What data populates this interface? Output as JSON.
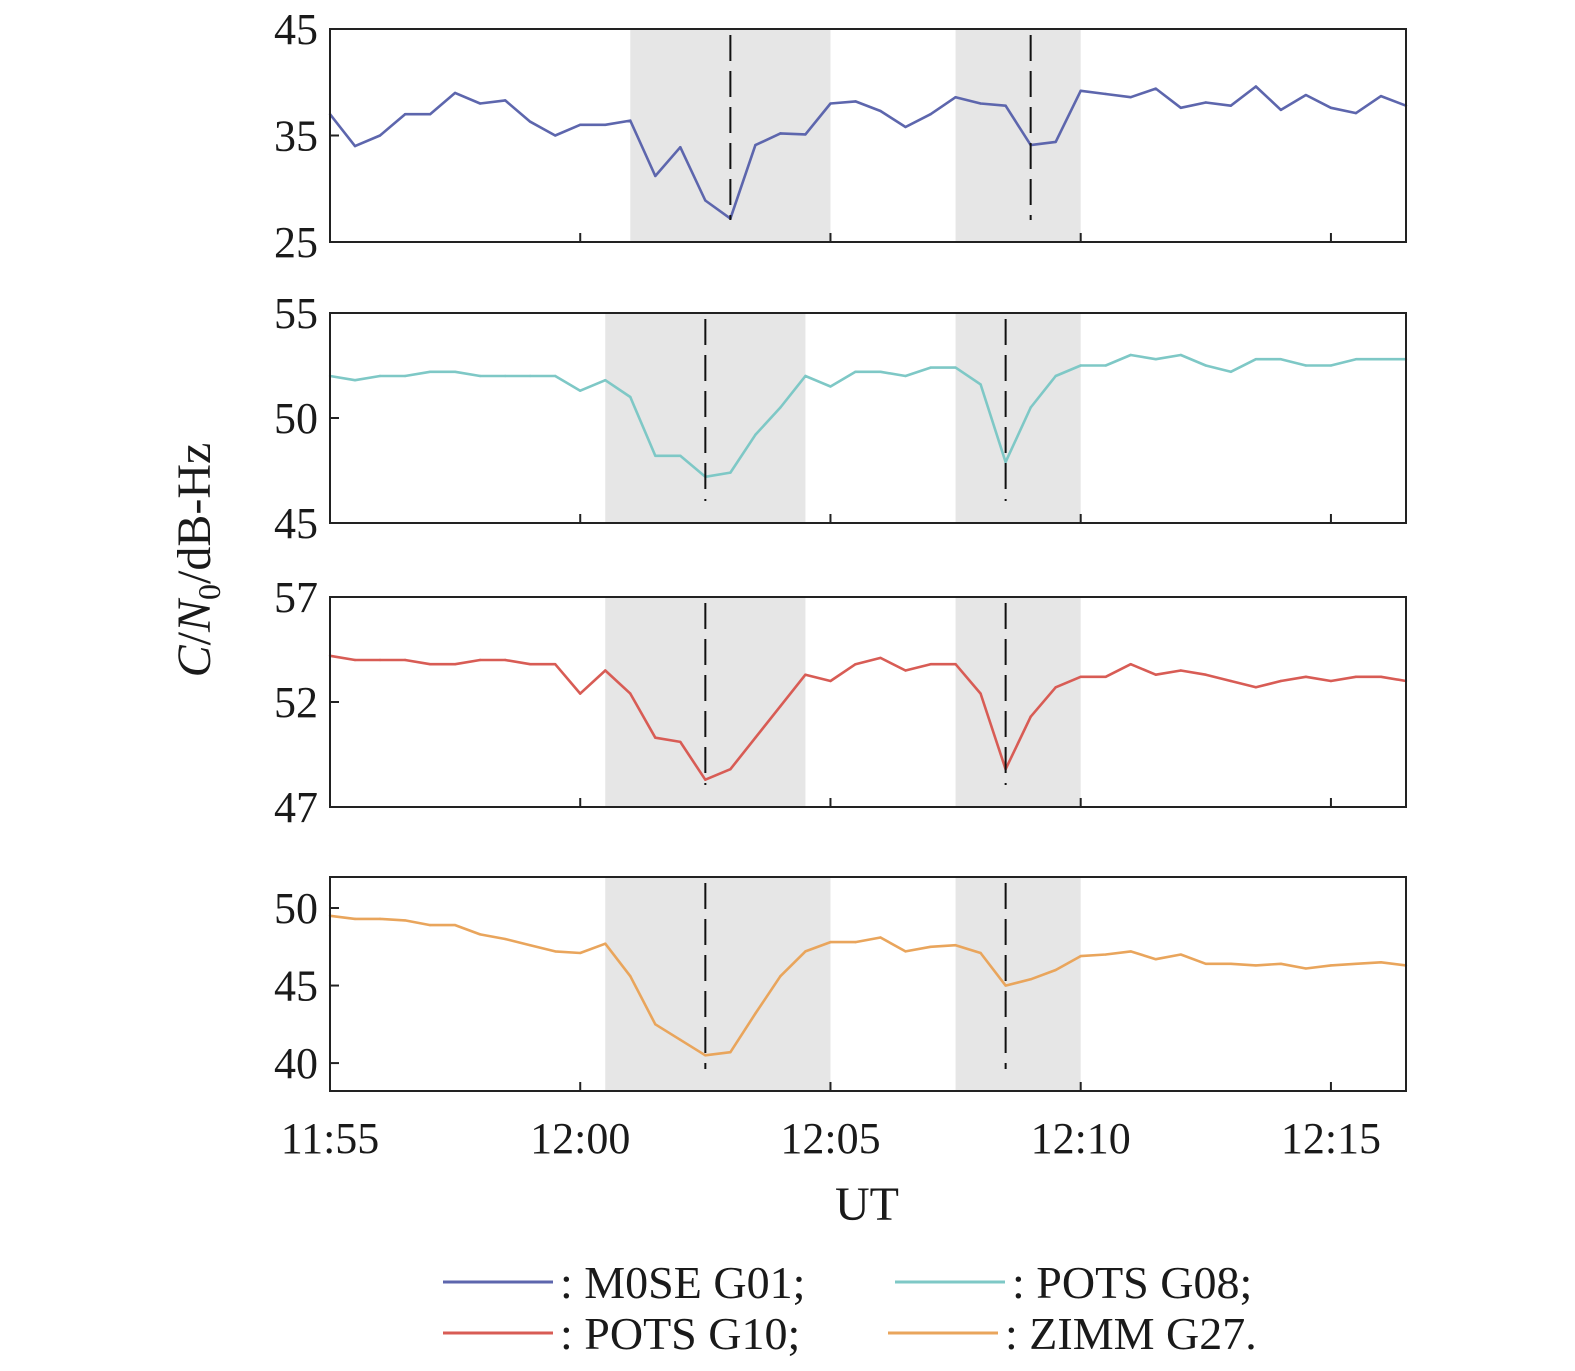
{
  "chart_data": {
    "type": "line",
    "ylabel": "C/N0/dB-Hz",
    "ylabel_parts": {
      "main": "C",
      "sep": "/",
      "n": "N",
      "sub": "0",
      "unit": "/dB-Hz"
    },
    "xlabel": "UT",
    "x_axis": {
      "unit": "minutes",
      "range": [
        715,
        736.5
      ],
      "ticks": [
        715,
        720,
        725,
        730,
        735
      ],
      "tick_labels": [
        "11:55",
        "12:00",
        "12:05",
        "12:10",
        "12:15"
      ]
    },
    "grid": false,
    "legend_position": "bottom",
    "panels": [
      {
        "series_name": "M0SE G01",
        "legend_text": ": M0SE G01;",
        "color": "#5d66ad",
        "ylim": [
          25,
          45
        ],
        "yticks": [
          25,
          35,
          45
        ],
        "ytick_labels": [
          "25",
          "35",
          "45"
        ],
        "shaded": [
          [
            721,
            725
          ],
          [
            727.5,
            730
          ]
        ],
        "dashed": [
          723,
          729
        ],
        "x": [
          715,
          715.5,
          716,
          716.5,
          717,
          717.5,
          718,
          718.5,
          719,
          719.5,
          720,
          720.5,
          721,
          721.5,
          722,
          722.5,
          723,
          723.5,
          724,
          724.5,
          725,
          725.5,
          726,
          726.5,
          727,
          727.5,
          728,
          728.5,
          729,
          729.5,
          730,
          730.5,
          731,
          731.5,
          732,
          732.5,
          733,
          733.5,
          734,
          734.5,
          735,
          735.5,
          736,
          736.5
        ],
        "values": [
          37,
          34,
          35,
          37,
          37,
          39,
          38,
          38.3,
          36.3,
          35,
          36,
          36,
          36.4,
          31.2,
          33.9,
          28.9,
          27.2,
          34.1,
          35.2,
          35.1,
          38,
          38.2,
          37.3,
          35.8,
          37,
          38.6,
          38,
          37.8,
          34.1,
          34.4,
          39.2,
          38.9,
          38.6,
          39.4,
          37.6,
          38.1,
          37.8,
          39.6,
          37.4,
          38.8,
          37.6,
          37.1,
          38.7,
          37.8
        ]
      },
      {
        "series_name": "POTS G08",
        "legend_text": ": POTS G08;",
        "color": "#7ec8c6",
        "ylim": [
          45,
          55
        ],
        "yticks": [
          45,
          50,
          55
        ],
        "ytick_labels": [
          "45",
          "50",
          "55"
        ],
        "shaded": [
          [
            720.5,
            724.5
          ],
          [
            727.5,
            730
          ]
        ],
        "dashed": [
          722.5,
          728.5
        ],
        "x": [
          715,
          715.5,
          716,
          716.5,
          717,
          717.5,
          718,
          718.5,
          719,
          719.5,
          720,
          720.5,
          721,
          721.5,
          722,
          722.5,
          723,
          723.5,
          724,
          724.5,
          725,
          725.5,
          726,
          726.5,
          727,
          727.5,
          728,
          728.5,
          729,
          729.5,
          730,
          730.5,
          731,
          731.5,
          732,
          732.5,
          733,
          733.5,
          734,
          734.5,
          735,
          735.5,
          736,
          736.5
        ],
        "values": [
          52,
          51.8,
          52,
          52,
          52.2,
          52.2,
          52,
          52,
          52,
          52,
          51.3,
          51.8,
          51,
          48.2,
          48.2,
          47.2,
          47.4,
          49.2,
          50.5,
          52,
          51.5,
          52.2,
          52.2,
          52,
          52.4,
          52.4,
          51.6,
          47.9,
          50.5,
          52,
          52.5,
          52.5,
          53,
          52.8,
          53,
          52.5,
          52.2,
          52.8,
          52.8,
          52.5,
          52.5,
          52.8,
          52.8,
          52.8
        ]
      },
      {
        "series_name": "POTS G10",
        "legend_text": ": POTS G10;",
        "color": "#d85c55",
        "ylim": [
          47,
          57
        ],
        "yticks": [
          47,
          52,
          57
        ],
        "ytick_labels": [
          "47",
          "52",
          "57"
        ],
        "shaded": [
          [
            720.5,
            724.5
          ],
          [
            727.5,
            730
          ]
        ],
        "dashed": [
          722.5,
          728.5
        ],
        "x": [
          715,
          715.5,
          716,
          716.5,
          717,
          717.5,
          718,
          718.5,
          719,
          719.5,
          720,
          720.5,
          721,
          721.5,
          722,
          722.5,
          723,
          723.5,
          724,
          724.5,
          725,
          725.5,
          726,
          726.5,
          727,
          727.5,
          728,
          728.5,
          729,
          729.5,
          730,
          730.5,
          731,
          731.5,
          732,
          732.5,
          733,
          733.5,
          734,
          734.5,
          735,
          735.5,
          736,
          736.5
        ],
        "values": [
          54.2,
          54,
          54,
          54,
          53.8,
          53.8,
          54,
          54,
          53.8,
          53.8,
          52.4,
          53.5,
          52.4,
          50.3,
          50.1,
          48.3,
          48.8,
          50.3,
          51.8,
          53.3,
          53,
          53.8,
          54.1,
          53.5,
          53.8,
          53.8,
          52.4,
          48.8,
          51.3,
          52.7,
          53.2,
          53.2,
          53.8,
          53.3,
          53.5,
          53.3,
          53,
          52.7,
          53,
          53.2,
          53,
          53.2,
          53.2,
          53
        ]
      },
      {
        "series_name": "ZIMM G27",
        "legend_text": ": ZIMM G27.",
        "color": "#e9a55c",
        "ylim": [
          38.2,
          52
        ],
        "yticks": [
          40,
          45,
          50
        ],
        "ytick_labels": [
          "40",
          "45",
          "50"
        ],
        "shaded": [
          [
            720.5,
            725
          ],
          [
            727.5,
            730
          ]
        ],
        "dashed": [
          722.5,
          728.5
        ],
        "x": [
          715,
          715.5,
          716,
          716.5,
          717,
          717.5,
          718,
          718.5,
          719,
          719.5,
          720,
          720.5,
          721,
          721.5,
          722,
          722.5,
          723,
          723.5,
          724,
          724.5,
          725,
          725.5,
          726,
          726.5,
          727,
          727.5,
          728,
          728.5,
          729,
          729.5,
          730,
          730.5,
          731,
          731.5,
          732,
          732.5,
          733,
          733.5,
          734,
          734.5,
          735,
          735.5,
          736,
          736.5
        ],
        "values": [
          49.5,
          49.3,
          49.3,
          49.2,
          48.9,
          48.9,
          48.3,
          48,
          47.6,
          47.2,
          47.1,
          47.7,
          45.6,
          42.5,
          41.5,
          40.5,
          40.7,
          43.2,
          45.6,
          47.2,
          47.8,
          47.8,
          48.1,
          47.2,
          47.5,
          47.6,
          47.1,
          45,
          45.4,
          46,
          46.9,
          47,
          47.2,
          46.7,
          47,
          46.4,
          46.4,
          46.3,
          46.4,
          46.1,
          46.3,
          46.4,
          46.5,
          46.3
        ]
      }
    ]
  }
}
